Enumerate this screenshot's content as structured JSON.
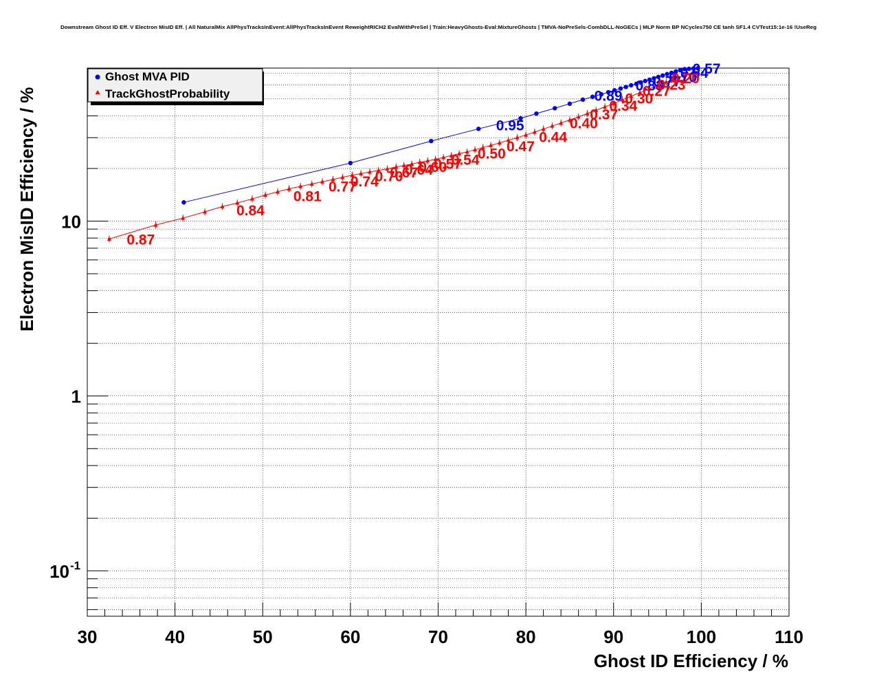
{
  "chart_data": {
    "type": "scatter",
    "title": "Downstream Ghost ID Eff. V Electron MisID Eff. | All NaturalMix AllPhysTracksInEvent:AllPhysTracksInEvent ReweightRICH2 EvalWithPreSel | Train:HeavyGhosts-Eval:MixtureGhosts | TMVA-NoPreSels-CombDLL-NoGECs | MLP Norm BP NCycles750 CE tanh SF1.4 CVTest15:1e-16 !UseReg",
    "xlabel": "Ghost ID Efficiency / %",
    "ylabel": "Electron MisID Efficiency / %",
    "xlim": [
      30,
      110
    ],
    "ylim": [
      0.055,
      75
    ],
    "yscale": "log",
    "grid": true,
    "legend_position": "top-left",
    "x_ticks": [
      "30",
      "40",
      "50",
      "60",
      "70",
      "80",
      "90",
      "100",
      "110"
    ],
    "y_ticks": [
      {
        "base": "10",
        "exp": "-1",
        "value": 0.1
      },
      {
        "base": "1",
        "exp": "",
        "value": 1
      },
      {
        "base": "10",
        "exp": "",
        "value": 10
      }
    ],
    "series": [
      {
        "name": "Ghost MVA PID",
        "color": "#0000ff",
        "marker": "circle",
        "x": [
          41.0,
          60.0,
          69.2,
          74.6,
          79.4,
          81.2,
          83.3,
          85.0,
          86.5,
          87.6,
          88.6,
          89.4,
          90.1,
          90.8,
          91.4,
          92.0,
          92.6,
          93.1,
          93.6,
          94.1,
          94.6,
          95.1,
          95.6,
          96.1,
          96.6,
          97.1,
          97.6,
          98.1,
          98.6,
          99.1,
          99.6
        ],
        "y": [
          12.8,
          21.5,
          28.7,
          33.7,
          38.7,
          41.2,
          44.2,
          46.9,
          49.5,
          51.4,
          53.1,
          54.6,
          56.0,
          57.3,
          58.5,
          59.8,
          61.0,
          62.1,
          63.3,
          64.4,
          65.6,
          66.8,
          68.0,
          69.3,
          70.5,
          71.8,
          73.0,
          74.0,
          74.3,
          74.6,
          74.8
        ]
      },
      {
        "name": "TrackGhostProbability",
        "color": "#ff0000",
        "marker": "triangle",
        "x": [
          32.5,
          37.8,
          40.9,
          43.4,
          45.4,
          47.1,
          48.8,
          50.3,
          51.7,
          53.0,
          54.3,
          55.6,
          56.8,
          58.0,
          59.1,
          60.2,
          61.2,
          62.2,
          63.2,
          64.2,
          65.2,
          66.1,
          67.0,
          67.9,
          68.8,
          69.7,
          70.6,
          71.5,
          72.4,
          73.3,
          74.2,
          75.1,
          76.0,
          77.0,
          78.0,
          79.0,
          80.0,
          81.0,
          82.0,
          83.0,
          84.0,
          85.0,
          86.0,
          87.0,
          88.0,
          89.0,
          90.0,
          91.0,
          92.0,
          93.0,
          94.0,
          95.0,
          96.0,
          97.0,
          98.0,
          99.0
        ],
        "y": [
          7.9,
          9.5,
          10.4,
          11.3,
          12.1,
          12.7,
          13.4,
          14.1,
          14.7,
          15.3,
          15.8,
          16.3,
          16.8,
          17.3,
          17.8,
          18.3,
          18.7,
          19.1,
          19.5,
          19.9,
          20.4,
          20.8,
          21.2,
          21.7,
          22.1,
          22.6,
          23.1,
          23.7,
          24.3,
          24.9,
          25.6,
          26.3,
          27.1,
          28.0,
          29.0,
          30.0,
          31.1,
          32.3,
          33.6,
          35.0,
          36.4,
          37.9,
          39.5,
          41.2,
          43.0,
          45.0,
          47.1,
          49.4,
          51.8,
          54.3,
          56.9,
          59.6,
          62.4,
          65.2,
          68.0,
          70.8
        ]
      }
    ],
    "annotations": [
      {
        "text": "0.95",
        "x": 76.6,
        "y": 35.5,
        "series": "Ghost MVA PID"
      },
      {
        "text": "0.89",
        "x": 87.8,
        "y": 52.5,
        "series": "Ghost MVA PID"
      },
      {
        "text": "0.83",
        "x": 92.5,
        "y": 60.0,
        "series": "Ghost MVA PID"
      },
      {
        "text": "0.77",
        "x": 94.5,
        "y": 63.5,
        "series": "Ghost MVA PID"
      },
      {
        "text": "0.70",
        "x": 96.3,
        "y": 67.0,
        "series": "Ghost MVA PID"
      },
      {
        "text": "0.64",
        "x": 97.6,
        "y": 71.0,
        "series": "Ghost MVA PID"
      },
      {
        "text": "0.57",
        "x": 99.0,
        "y": 75.0,
        "series": "Ghost MVA PID"
      },
      {
        "text": "0.87",
        "x": 34.5,
        "y": 7.9,
        "series": "TrackGhostProbability"
      },
      {
        "text": "0.84",
        "x": 47.0,
        "y": 11.6,
        "series": "TrackGhostProbability"
      },
      {
        "text": "0.81",
        "x": 53.5,
        "y": 14.0,
        "series": "TrackGhostProbability"
      },
      {
        "text": "0.77",
        "x": 57.5,
        "y": 15.9,
        "series": "TrackGhostProbability"
      },
      {
        "text": "0.74",
        "x": 60.0,
        "y": 17.0,
        "series": "TrackGhostProbability"
      },
      {
        "text": "0.70",
        "x": 62.8,
        "y": 18.2,
        "series": "TrackGhostProbability"
      },
      {
        "text": "0.67",
        "x": 64.5,
        "y": 19.1,
        "series": "TrackGhostProbability"
      },
      {
        "text": "0.64",
        "x": 66.2,
        "y": 19.8,
        "series": "TrackGhostProbability"
      },
      {
        "text": "0.60",
        "x": 67.8,
        "y": 20.5,
        "series": "TrackGhostProbability"
      },
      {
        "text": "0.57",
        "x": 69.5,
        "y": 21.4,
        "series": "TrackGhostProbability"
      },
      {
        "text": "0.54",
        "x": 71.5,
        "y": 22.6,
        "series": "TrackGhostProbability"
      },
      {
        "text": "0.50",
        "x": 74.5,
        "y": 24.5,
        "series": "TrackGhostProbability"
      },
      {
        "text": "0.47",
        "x": 77.8,
        "y": 27.0,
        "series": "TrackGhostProbability"
      },
      {
        "text": "0.44",
        "x": 81.5,
        "y": 30.5,
        "series": "TrackGhostProbability"
      },
      {
        "text": "0.40",
        "x": 85.0,
        "y": 36.5,
        "series": "TrackGhostProbability"
      },
      {
        "text": "0.37",
        "x": 87.3,
        "y": 41.0,
        "series": "TrackGhostProbability"
      },
      {
        "text": "0.34",
        "x": 89.5,
        "y": 46.0,
        "series": "TrackGhostProbability"
      },
      {
        "text": "0.30",
        "x": 91.3,
        "y": 50.5,
        "series": "TrackGhostProbability"
      },
      {
        "text": "0.27",
        "x": 93.3,
        "y": 56.0,
        "series": "TrackGhostProbability"
      },
      {
        "text": "0.23",
        "x": 95.0,
        "y": 60.5,
        "series": "TrackGhostProbability"
      },
      {
        "text": "0.20",
        "x": 96.6,
        "y": 66.0,
        "series": "TrackGhostProbability"
      }
    ]
  }
}
